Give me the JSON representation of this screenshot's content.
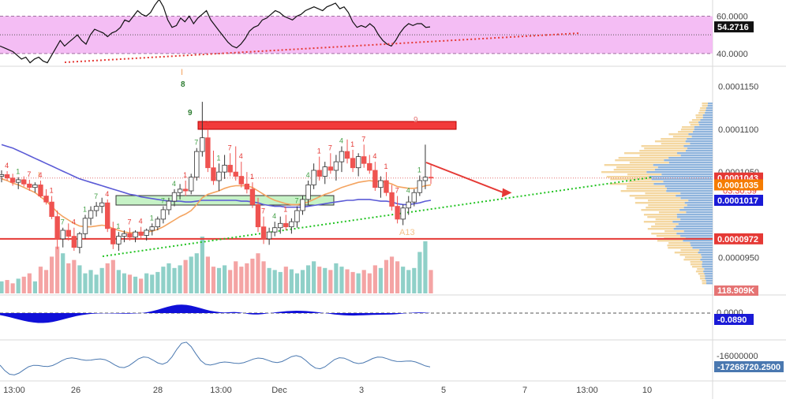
{
  "chart_data": {
    "type": "candlestick",
    "panels": {
      "rsi": {
        "series_name": "",
        "last_value": "54.2716",
        "y_ticks": [
          "60.0000",
          "40.0000"
        ],
        "ylim": [
          34,
          67
        ],
        "band": [
          40,
          60
        ],
        "values": [
          44,
          43,
          42,
          41,
          39,
          37,
          38,
          35,
          37,
          38,
          36,
          35,
          39,
          43,
          47,
          44,
          46,
          48,
          50,
          47,
          45,
          50,
          53,
          52,
          51,
          49,
          51,
          52,
          54,
          58,
          57,
          60,
          63,
          61,
          60,
          62,
          66,
          69,
          65,
          58,
          54,
          55,
          59,
          57,
          60,
          56,
          59,
          61,
          63,
          58,
          55,
          52,
          49,
          46,
          44,
          43,
          45,
          48,
          52,
          54,
          55,
          58,
          59,
          61,
          63,
          62,
          60,
          59,
          58,
          60,
          61,
          63,
          64,
          65,
          64,
          63,
          65,
          66,
          67,
          64,
          65,
          62,
          57,
          54,
          55,
          54,
          56,
          54,
          50,
          47,
          45,
          44,
          47,
          51,
          54,
          56,
          55,
          56,
          56,
          54,
          54.27
        ]
      },
      "price": {
        "y_ticks": [
          "0.0001150",
          "0.0001100",
          "0.0001050",
          "0.0000950"
        ],
        "ylim": [
          9.12e-05,
          0.0001168
        ],
        "badges": {
          "current": "0.0001043",
          "countdown": "03:30:59",
          "ma_orange": "0.0001035",
          "ma_blue": "0.0001017",
          "level": "0.0000972",
          "volume": "118.909K"
        },
        "candles": [
          [
            0.0001045,
            0.0001052,
            0.0001038,
            0.0001047
          ],
          [
            0.0001047,
            0.0001051,
            0.000104,
            0.0001043
          ],
          [
            0.0001043,
            0.0001048,
            0.0001034,
            0.0001038
          ],
          [
            0.0001038,
            0.0001044,
            0.000103,
            0.0001041
          ],
          [
            0.0001041,
            0.0001045,
            0.0001033,
            0.0001036
          ],
          [
            0.0001036,
            0.0001041,
            0.0001028,
            0.0001032
          ],
          [
            0.0001032,
            0.0001038,
            0.0001026,
            0.0001035
          ],
          [
            0.0001035,
            0.000104,
            0.000102,
            0.0001022
          ],
          [
            0.0001022,
            0.000103,
            0.0001012,
            0.0001015
          ],
          [
            0.0001015,
            0.0001022,
            9.95e-05,
            9.98e-05
          ],
          [
            9.98e-05,
            0.0001005,
            9.6e-05,
            9.72e-05
          ],
          [
            9.72e-05,
            9.85e-05,
            9.62e-05,
            9.82e-05
          ],
          [
            9.82e-05,
            9.9e-05,
            9.7e-05,
            9.75e-05
          ],
          [
            9.75e-05,
            9.85e-05,
            9.58e-05,
            9.62e-05
          ],
          [
            9.62e-05,
            9.8e-05,
            9.55e-05,
            9.78e-05
          ],
          [
            9.78e-05,
            0.0001,
            9.72e-05,
            9.96e-05
          ],
          [
            9.96e-05,
            0.000101,
            9.88e-05,
            0.0001005
          ],
          [
            0.0001005,
            0.0001015,
            9.98e-05,
            0.000101
          ],
          [
            0.000101,
            0.000102,
            0.0001002,
            0.0001014
          ],
          [
            0.0001014,
            0.0001018,
            9.8e-05,
            9.84e-05
          ],
          [
            9.84e-05,
            9.92e-05,
            9.6e-05,
            9.66e-05
          ],
          [
            9.66e-05,
            9.8e-05,
            9.58e-05,
            9.75e-05
          ],
          [
            9.75e-05,
            9.82e-05,
            9.68e-05,
            9.78e-05
          ],
          [
            9.78e-05,
            9.85e-05,
            9.7e-05,
            9.74e-05
          ],
          [
            9.74e-05,
            9.82e-05,
            9.68e-05,
            9.8e-05
          ],
          [
            9.8e-05,
            9.86e-05,
            9.72e-05,
            9.76e-05
          ],
          [
            9.76e-05,
            9.84e-05,
            9.7e-05,
            9.82e-05
          ],
          [
            9.82e-05,
            9.9e-05,
            9.76e-05,
            9.86e-05
          ],
          [
            9.86e-05,
            9.98e-05,
            9.82e-05,
            9.95e-05
          ],
          [
            9.95e-05,
            0.000101,
            9.9e-05,
            0.0001006
          ],
          [
            0.0001006,
            0.000102,
            0.0001,
            0.0001016
          ],
          [
            0.0001016,
            0.000103,
            0.000101,
            0.0001026
          ],
          [
            0.0001026,
            0.0001036,
            0.0001018,
            0.000103
          ],
          [
            0.000103,
            0.000104,
            0.0001022,
            0.0001028
          ],
          [
            0.0001028,
            0.0001048,
            0.0001024,
            0.0001044
          ],
          [
            0.0001044,
            0.0001078,
            0.000104,
            0.0001074
          ],
          [
            0.0001074,
            0.0001132,
            0.0001068,
            0.000109
          ],
          [
            0.000109,
            0.00011,
            0.000105,
            0.0001055
          ],
          [
            0.0001055,
            0.0001075,
            0.0001035,
            0.000104
          ],
          [
            0.000104,
            0.000106,
            0.0001028,
            0.000105
          ],
          [
            0.000105,
            0.000107,
            0.0001042,
            0.0001058
          ],
          [
            0.0001058,
            0.0001072,
            0.0001045,
            0.000105
          ],
          [
            0.000105,
            0.000108,
            0.000104,
            0.0001045
          ],
          [
            0.0001045,
            0.0001062,
            0.0001032,
            0.0001036
          ],
          [
            0.0001036,
            0.000105,
            0.0001025,
            0.000103
          ],
          [
            0.000103,
            0.0001038,
            0.0001008,
            0.0001012
          ],
          [
            0.0001012,
            0.000102,
            9.8e-05,
            9.86e-05
          ],
          [
            9.86e-05,
            9.98e-05,
            9.66e-05,
            9.72e-05
          ],
          [
            9.72e-05,
            9.85e-05,
            9.65e-05,
            9.8e-05
          ],
          [
            9.8e-05,
            9.92e-05,
            9.75e-05,
            9.85e-05
          ],
          [
            9.85e-05,
            9.98e-05,
            9.78e-05,
            9.9e-05
          ],
          [
            9.9e-05,
            0.0001,
            9.82e-05,
            9.86e-05
          ],
          [
            9.86e-05,
            9.96e-05,
            9.78e-05,
            9.92e-05
          ],
          [
            9.92e-05,
            0.000101,
            9.85e-05,
            0.0001005
          ],
          [
            0.0001005,
            0.0001022,
            0.0001,
            0.0001018
          ],
          [
            0.0001018,
            0.000104,
            0.0001012,
            0.0001035
          ],
          [
            0.0001035,
            0.000106,
            0.000103,
            0.0001052
          ],
          [
            0.0001052,
            0.0001068,
            0.000104,
            0.0001045
          ],
          [
            0.0001045,
            0.0001062,
            0.0001036,
            0.0001056
          ],
          [
            0.0001056,
            0.0001072,
            0.0001048,
            0.0001052
          ],
          [
            0.0001052,
            0.000107,
            0.000104,
            0.0001062
          ],
          [
            0.0001062,
            0.000108,
            0.000105,
            0.0001074
          ],
          [
            0.0001074,
            0.0001088,
            0.000106,
            0.0001066
          ],
          [
            0.0001066,
            0.0001076,
            0.000105,
            0.0001055
          ],
          [
            0.0001055,
            0.0001072,
            0.0001045,
            0.0001068
          ],
          [
            0.0001068,
            0.0001082,
            0.0001055,
            0.000106
          ],
          [
            0.000106,
            0.000107,
            0.0001048,
            0.0001052
          ],
          [
            0.0001052,
            0.0001062,
            0.0001028,
            0.0001032
          ],
          [
            0.0001032,
            0.0001045,
            0.000102,
            0.000104
          ],
          [
            0.000104,
            0.000105,
            0.0001022,
            0.0001026
          ],
          [
            0.0001026,
            0.0001035,
            0.0001005,
            0.000101
          ],
          [
            0.000101,
            0.0001022,
            9.9e-05,
            9.95e-05
          ],
          [
            9.95e-05,
            0.0001012,
            9.88e-05,
            0.0001008
          ],
          [
            0.0001008,
            0.0001022,
            0.0001,
            0.0001015
          ],
          [
            0.0001015,
            0.000103,
            0.000101,
            0.0001026
          ],
          [
            0.0001026,
            0.0001046,
            0.0001022,
            0.000104
          ],
          [
            0.000104,
            0.0001082,
            0.000103,
            0.0001044
          ],
          [
            0.0001044,
            0.0001058,
            0.0001036,
            0.0001043
          ]
        ],
        "ma_orange": [
          0.0001042,
          0.000104,
          0.0001037,
          0.0001035,
          0.0001032,
          0.0001029,
          0.0001026,
          0.0001021,
          0.0001016,
          0.000101,
          0.0001003,
          9.98e-05,
          9.94e-05,
          9.9e-05,
          9.87e-05,
          9.86e-05,
          9.86e-05,
          9.87e-05,
          9.88e-05,
          9.87e-05,
          9.84e-05,
          9.82e-05,
          9.8e-05,
          9.79e-05,
          9.79e-05,
          9.79e-05,
          9.8e-05,
          9.81e-05,
          9.83e-05,
          9.86e-05,
          9.9e-05,
          9.94e-05,
          9.98e-05,
          0.0001001,
          0.0001005,
          0.0001012,
          0.000102,
          0.0001024,
          0.0001026,
          0.0001028,
          0.0001031,
          0.0001033,
          0.0001034,
          0.0001034,
          0.0001034,
          0.0001032,
          0.0001028,
          0.0001024,
          0.000102,
          0.0001017,
          0.0001015,
          0.0001013,
          0.0001012,
          0.0001012,
          0.0001013,
          0.0001015,
          0.0001018,
          0.0001021,
          0.0001024,
          0.0001026,
          0.0001029,
          0.0001032,
          0.0001034,
          0.0001036,
          0.0001038,
          0.0001039,
          0.000104,
          0.0001039,
          0.0001039,
          0.0001038,
          0.0001036,
          0.0001033,
          0.0001032,
          0.0001031,
          0.0001031,
          0.0001032,
          0.0001034,
          0.0001035
        ],
        "ma_blue": [
          0.0001082,
          0.000108,
          0.0001078,
          0.0001075,
          0.0001072,
          0.0001069,
          0.0001066,
          0.0001063,
          0.000106,
          0.0001057,
          0.0001054,
          0.0001051,
          0.0001048,
          0.0001045,
          0.0001042,
          0.000104,
          0.0001038,
          0.0001036,
          0.0001034,
          0.0001032,
          0.000103,
          0.0001028,
          0.0001026,
          0.0001024,
          0.0001023,
          0.0001021,
          0.000102,
          0.0001019,
          0.0001018,
          0.0001017,
          0.0001016,
          0.0001016,
          0.0001016,
          0.0001015,
          0.0001015,
          0.0001016,
          0.0001017,
          0.0001017,
          0.0001017,
          0.0001017,
          0.0001017,
          0.0001017,
          0.0001017,
          0.0001016,
          0.0001016,
          0.0001015,
          0.0001014,
          0.0001012,
          0.0001011,
          0.000101,
          0.000101,
          0.0001009,
          0.0001009,
          0.0001009,
          0.0001009,
          0.000101,
          0.0001011,
          0.0001012,
          0.0001013,
          0.0001014,
          0.0001015,
          0.0001016,
          0.0001017,
          0.0001017,
          0.0001018,
          0.0001018,
          0.0001018,
          0.0001017,
          0.0001016,
          0.0001016,
          0.0001015,
          0.0001013,
          0.0001012,
          0.0001012,
          0.0001013,
          0.0001014,
          0.0001016,
          0.0001017
        ],
        "volume": [
          18,
          20,
          15,
          22,
          25,
          30,
          18,
          40,
          35,
          55,
          70,
          60,
          45,
          50,
          42,
          30,
          35,
          28,
          38,
          45,
          50,
          35,
          30,
          28,
          25,
          22,
          30,
          28,
          32,
          40,
          45,
          38,
          42,
          50,
          55,
          60,
          85,
          55,
          40,
          38,
          42,
          35,
          48,
          40,
          45,
          52,
          60,
          48,
          38,
          35,
          32,
          40,
          36,
          30,
          35,
          42,
          48,
          40,
          38,
          35,
          45,
          40,
          36,
          32,
          30,
          35,
          30,
          42,
          38,
          50,
          55,
          48,
          40,
          35,
          38,
          62,
          78,
          35
        ],
        "horizontal_level": 9.72e-05,
        "annotations": {
          "top_labels": [
            "I",
            "8",
            "9",
            "9",
            "3",
            "1",
            "4",
            "A13",
            "I"
          ],
          "setup_numbers": [
            "1",
            "2",
            "3",
            "4",
            "5",
            "6",
            "7",
            "8",
            "9"
          ]
        }
      },
      "macd": {
        "last_value": "-0.0890",
        "tick": "0.0000"
      },
      "obv": {
        "last_value": "-17268720.2500",
        "tick": "-16000000"
      }
    },
    "x_ticks": [
      "13:00",
      "26",
      "28",
      "13:00",
      "Dec",
      "3",
      "5",
      "7",
      "13:00",
      "10"
    ],
    "grid": false,
    "legend": "none"
  },
  "colors": {
    "up": "#26a69a",
    "down": "#ef5350",
    "ma_orange": "#f4a460",
    "ma_blue": "#5b5bd6",
    "rsi_band": "#f2b2f2",
    "macd_fill": "#1010d8",
    "obv_line": "#4a78b0",
    "badge_red": "#e53935",
    "badge_orange": "#f57c00",
    "badge_blue": "#1a1ad6",
    "badge_black": "#111111"
  }
}
